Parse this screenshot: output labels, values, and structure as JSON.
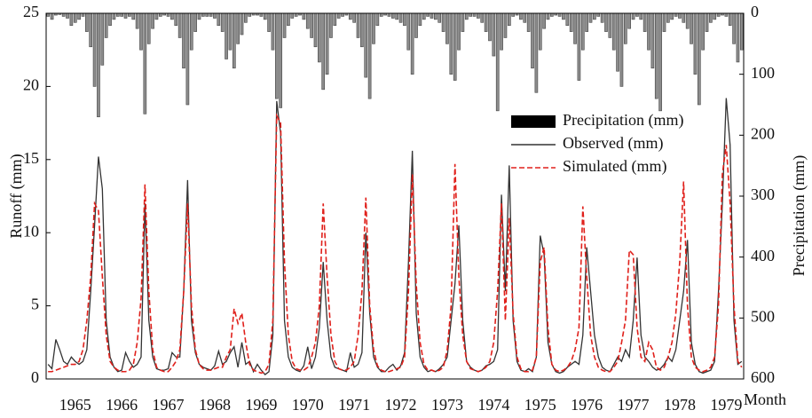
{
  "chart_data": {
    "type": "line",
    "y_label": "Runoff (mm)",
    "y2_label": "Precipitation (mm)",
    "x_label": "Month",
    "categories": [
      null,
      null,
      null,
      null,
      null,
      null,
      null,
      "1965",
      null,
      null,
      null,
      null,
      null,
      null,
      null,
      null,
      null,
      null,
      null,
      "1966",
      null,
      null,
      null,
      null,
      null,
      null,
      null,
      null,
      null,
      null,
      null,
      "1967",
      null,
      null,
      null,
      null,
      null,
      null,
      null,
      null,
      null,
      null,
      null,
      "1968",
      null,
      null,
      null,
      null,
      null,
      null,
      null,
      null,
      null,
      null,
      null,
      "1969",
      null,
      null,
      null,
      null,
      null,
      null,
      null,
      null,
      null,
      null,
      null,
      "1970",
      null,
      null,
      null,
      null,
      null,
      null,
      null,
      null,
      null,
      null,
      null,
      "1971",
      null,
      null,
      null,
      null,
      null,
      null,
      null,
      null,
      null,
      null,
      null,
      "1972",
      null,
      null,
      null,
      null,
      null,
      null,
      null,
      null,
      null,
      null,
      null,
      "1973",
      null,
      null,
      null,
      null,
      null,
      null,
      null,
      null,
      null,
      null,
      null,
      "1974",
      null,
      null,
      null,
      null,
      null,
      null,
      null,
      null,
      null,
      null,
      null,
      "1975",
      null,
      null,
      null,
      null,
      null,
      null,
      null,
      null,
      null,
      null,
      null,
      "1976",
      null,
      null,
      null,
      null,
      null,
      null,
      null,
      null,
      null,
      null,
      null,
      "1977",
      null,
      null,
      null,
      null,
      null,
      null,
      null,
      null,
      null,
      null,
      null,
      "1978",
      null,
      null,
      null,
      null,
      null,
      null,
      null,
      null,
      null,
      null,
      null,
      "1979",
      null,
      null,
      null,
      null
    ],
    "series": [
      {
        "name": "Precipitation (mm)",
        "type": "bar",
        "axis": "y2",
        "color": "#8c8c8c",
        "legend_color": "#000000",
        "values": [
          5,
          10,
          3,
          2,
          5,
          8,
          20,
          15,
          10,
          5,
          30,
          55,
          120,
          170,
          85,
          40,
          20,
          10,
          5,
          5,
          8,
          5,
          10,
          25,
          60,
          165,
          50,
          25,
          10,
          5,
          3,
          5,
          10,
          20,
          40,
          90,
          150,
          60,
          30,
          10,
          5,
          5,
          5,
          8,
          20,
          30,
          75,
          60,
          90,
          50,
          35,
          15,
          5,
          3,
          3,
          5,
          10,
          30,
          60,
          140,
          155,
          40,
          20,
          8,
          5,
          3,
          10,
          25,
          40,
          55,
          80,
          125,
          100,
          40,
          20,
          8,
          5,
          3,
          10,
          15,
          40,
          55,
          105,
          140,
          50,
          20,
          5,
          3,
          5,
          8,
          10,
          15,
          20,
          60,
          100,
          40,
          20,
          10,
          5,
          8,
          10,
          15,
          30,
          50,
          100,
          110,
          60,
          30,
          10,
          5,
          5,
          8,
          15,
          30,
          45,
          70,
          160,
          60,
          40,
          20,
          5,
          3,
          10,
          15,
          30,
          90,
          130,
          60,
          25,
          10,
          5,
          3,
          5,
          10,
          20,
          30,
          50,
          110,
          60,
          30,
          15,
          10,
          5,
          15,
          30,
          40,
          60,
          95,
          120,
          50,
          25,
          10,
          5,
          10,
          30,
          60,
          90,
          140,
          160,
          30,
          15,
          10,
          5,
          8,
          15,
          25,
          50,
          100,
          150,
          60,
          30,
          15,
          10,
          5,
          3,
          5,
          20,
          50,
          80,
          60
        ]
      },
      {
        "name": "Observed (mm)",
        "type": "line",
        "color": "#333333",
        "dashed": false,
        "values": [
          1.0,
          0.7,
          2.7,
          2.0,
          1.2,
          1.0,
          1.5,
          1.2,
          1.0,
          1.2,
          2.0,
          6.0,
          10.5,
          15.2,
          13.0,
          4.0,
          1.5,
          0.8,
          0.5,
          0.6,
          1.8,
          1.2,
          0.8,
          1.0,
          1.5,
          12.0,
          4.0,
          1.5,
          0.7,
          0.6,
          0.6,
          0.7,
          1.8,
          1.5,
          1.5,
          6.0,
          13.6,
          4.0,
          1.8,
          1.0,
          0.8,
          0.7,
          0.6,
          0.9,
          1.9,
          1.0,
          1.2,
          1.8,
          2.2,
          0.8,
          2.5,
          1.0,
          1.2,
          0.5,
          1.0,
          0.6,
          0.3,
          0.5,
          3.0,
          19.0,
          16.8,
          4.0,
          1.5,
          0.8,
          0.6,
          0.5,
          0.9,
          2.2,
          0.7,
          1.5,
          3.5,
          8.0,
          4.0,
          1.5,
          0.8,
          0.7,
          0.6,
          0.5,
          1.8,
          0.8,
          1.0,
          1.8,
          10.0,
          4.5,
          1.5,
          0.8,
          0.5,
          0.5,
          0.8,
          1.0,
          0.6,
          0.9,
          1.8,
          8.0,
          15.6,
          4.5,
          1.5,
          0.8,
          0.5,
          0.6,
          0.5,
          0.7,
          1.0,
          1.5,
          4.0,
          6.5,
          10.5,
          4.0,
          1.2,
          0.8,
          0.6,
          0.5,
          0.6,
          0.9,
          1.0,
          1.2,
          2.0,
          12.6,
          6.0,
          14.6,
          4.0,
          1.2,
          0.6,
          0.5,
          0.7,
          0.5,
          1.5,
          9.8,
          8.5,
          2.5,
          1.0,
          0.5,
          0.4,
          0.5,
          0.8,
          1.0,
          1.2,
          1.0,
          3.0,
          9.0,
          6.0,
          3.0,
          1.5,
          0.8,
          0.6,
          0.5,
          1.0,
          1.5,
          1.2,
          2.0,
          1.5,
          4.0,
          8.3,
          3.0,
          1.5,
          1.2,
          0.8,
          0.6,
          0.7,
          1.0,
          1.5,
          1.2,
          2.0,
          4.0,
          6.0,
          9.5,
          2.5,
          1.0,
          0.5,
          0.4,
          0.5,
          0.6,
          1.2,
          6.0,
          12.0,
          19.2,
          16.0,
          4.0,
          1.0,
          1.2
        ]
      },
      {
        "name": "Simulated (mm)",
        "type": "line",
        "color": "#e0201b",
        "dashed": true,
        "values": [
          0.5,
          0.5,
          0.6,
          0.7,
          0.8,
          0.9,
          1.0,
          1.0,
          1.2,
          2.0,
          4.0,
          7.0,
          12.0,
          11.5,
          7.0,
          3.0,
          1.2,
          0.8,
          0.6,
          0.5,
          0.5,
          0.6,
          1.0,
          2.5,
          5.5,
          13.3,
          6.0,
          2.0,
          0.8,
          0.6,
          0.5,
          0.5,
          0.8,
          1.2,
          2.0,
          6.0,
          12.0,
          5.0,
          2.0,
          1.0,
          0.7,
          0.6,
          0.6,
          0.7,
          0.8,
          0.8,
          1.5,
          2.0,
          4.8,
          3.8,
          4.5,
          2.5,
          1.0,
          0.6,
          0.5,
          0.4,
          0.5,
          1.0,
          4.0,
          18.0,
          17.5,
          8.0,
          3.0,
          1.2,
          0.7,
          0.6,
          0.6,
          0.8,
          1.5,
          2.5,
          5.0,
          12.0,
          7.0,
          3.0,
          1.2,
          0.7,
          0.6,
          0.6,
          0.8,
          1.2,
          3.0,
          6.0,
          12.4,
          5.0,
          2.0,
          0.9,
          0.6,
          0.5,
          0.5,
          0.6,
          0.7,
          0.8,
          1.5,
          6.0,
          14.0,
          6.5,
          2.5,
          1.0,
          0.6,
          0.6,
          0.5,
          0.6,
          0.8,
          2.0,
          5.0,
          14.7,
          7.0,
          3.0,
          1.2,
          0.7,
          0.6,
          0.5,
          0.6,
          0.8,
          1.2,
          2.5,
          6.0,
          12.0,
          4.0,
          11.0,
          4.5,
          1.5,
          0.7,
          0.5,
          0.5,
          0.6,
          1.5,
          8.0,
          9.0,
          3.5,
          1.0,
          0.6,
          0.5,
          0.6,
          0.8,
          1.2,
          2.0,
          3.5,
          11.8,
          7.0,
          3.0,
          1.5,
          0.8,
          0.6,
          0.5,
          0.5,
          0.8,
          1.2,
          2.5,
          4.0,
          8.8,
          8.5,
          3.5,
          1.5,
          1.2,
          2.5,
          2.0,
          0.8,
          0.6,
          0.8,
          1.5,
          2.5,
          4.5,
          8.0,
          13.5,
          5.0,
          1.5,
          0.8,
          0.6,
          0.5,
          0.6,
          0.8,
          1.5,
          5.0,
          14.0,
          16.0,
          12.0,
          5.0,
          1.2,
          0.8
        ]
      }
    ],
    "ylim": [
      0,
      25
    ],
    "yticks": [
      0,
      5,
      10,
      15,
      20,
      25
    ],
    "y2lim": [
      600,
      0
    ],
    "y2ticks": [
      0,
      100,
      200,
      300,
      400,
      500,
      600
    ],
    "legend": "upper-right"
  }
}
